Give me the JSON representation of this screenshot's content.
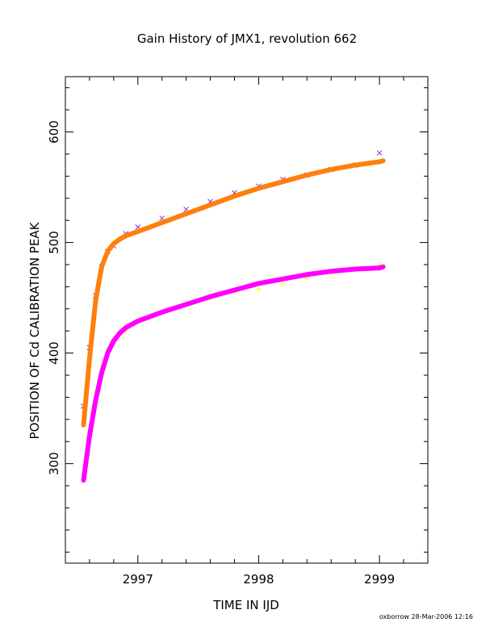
{
  "chart_data": {
    "type": "scatter",
    "title": "Gain History of JMX1, revolution 662",
    "xlabel": "TIME IN IJD",
    "ylabel": "POSITION OF Cd CALIBRATION PEAK",
    "xlim": [
      2996.4,
      2999.4
    ],
    "ylim": [
      210,
      650
    ],
    "x_ticks": [
      2997,
      2998,
      2999
    ],
    "x_tick_labels": [
      "2997",
      "2998",
      "2999"
    ],
    "y_ticks": [
      300,
      400,
      500,
      600
    ],
    "y_tick_labels": [
      "300",
      "400",
      "500",
      "600"
    ],
    "grid": false,
    "legend": "none",
    "series": [
      {
        "marker": "x",
        "color": "#8a2be2",
        "style": "scatter",
        "x": [
          2996.55,
          2996.6,
          2996.65,
          2996.7,
          2996.75,
          2996.8,
          2996.9,
          2997.0,
          2997.2,
          2997.4,
          2997.6,
          2997.8,
          2998.0,
          2998.2,
          2998.4,
          2998.6,
          2998.8,
          2999.0
        ],
        "y": [
          352,
          405,
          452,
          478,
          492,
          497,
          508,
          514,
          522,
          530,
          537,
          545,
          551,
          557,
          561,
          566,
          570,
          581
        ]
      },
      {
        "marker": "line",
        "color": "#ff7f0e",
        "style": "fit",
        "x": [
          2996.55,
          2996.6,
          2996.65,
          2996.7,
          2996.75,
          2996.8,
          2996.85,
          2996.9,
          2997.0,
          2997.2,
          2997.4,
          2997.6,
          2997.8,
          2998.0,
          2998.2,
          2998.4,
          2998.6,
          2998.8,
          2999.0,
          2999.03
        ],
        "y": [
          335,
          395,
          447,
          478,
          492,
          499,
          503,
          506,
          510,
          518,
          526,
          534,
          542,
          549,
          555,
          561,
          566,
          570,
          573,
          574
        ]
      },
      {
        "marker": "+",
        "color": "#ffff00",
        "style": "scatter",
        "x": [
          2996.6,
          2996.65,
          2996.7,
          2996.75,
          2996.8,
          2996.9,
          2997.0,
          2997.2,
          2997.4,
          2997.6,
          2997.8,
          2998.0,
          2998.2,
          2998.4,
          2998.6,
          2998.8,
          2999.0
        ],
        "y": [
          330,
          365,
          388,
          404,
          412,
          420,
          428,
          437,
          445,
          450,
          455,
          458,
          463,
          468,
          472,
          476,
          480
        ]
      },
      {
        "marker": "line",
        "color": "#ff00ff",
        "style": "fit",
        "x": [
          2996.55,
          2996.6,
          2996.65,
          2996.7,
          2996.75,
          2996.8,
          2996.85,
          2996.9,
          2997.0,
          2997.2,
          2997.4,
          2997.6,
          2997.8,
          2998.0,
          2998.2,
          2998.4,
          2998.6,
          2998.8,
          2999.0,
          2999.03
        ],
        "y": [
          285,
          325,
          357,
          382,
          400,
          411,
          418,
          423,
          429,
          437,
          444,
          451,
          457,
          463,
          467,
          471,
          474,
          476,
          477,
          478
        ]
      }
    ]
  },
  "footer": "oxborrow 28-Mar-2006 12:16"
}
